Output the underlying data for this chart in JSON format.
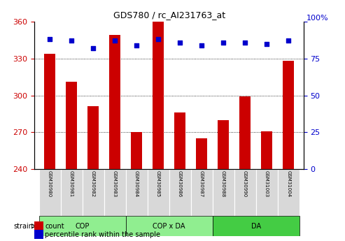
{
  "title": "GDS780 / rc_AI231763_at",
  "samples": [
    "GSM30980",
    "GSM30981",
    "GSM30982",
    "GSM30983",
    "GSM30984",
    "GSM30985",
    "GSM30986",
    "GSM30987",
    "GSM30988",
    "GSM30990",
    "GSM31003",
    "GSM31004"
  ],
  "counts": [
    334,
    311,
    291,
    349,
    270,
    360,
    286,
    265,
    280,
    299,
    271,
    328
  ],
  "percentile_ranks": [
    88,
    87,
    82,
    87,
    84,
    88,
    86,
    84,
    86,
    86,
    85,
    87
  ],
  "groups": [
    {
      "label": "COP",
      "start": 0,
      "end": 3,
      "color": "#b0e8b0"
    },
    {
      "label": "COP x DA",
      "start": 4,
      "end": 7,
      "color": "#b0e8b0"
    },
    {
      "label": "DA",
      "start": 8,
      "end": 11,
      "color": "#44cc44"
    }
  ],
  "ylim_left": [
    240,
    360
  ],
  "ylim_right": [
    0,
    100
  ],
  "yticks_left": [
    240,
    270,
    300,
    330,
    360
  ],
  "yticks_right": [
    0,
    25,
    50,
    75,
    100
  ],
  "bar_color": "#cc0000",
  "dot_color": "#0000cc",
  "label_count": "count",
  "label_percentile": "percentile rank within the sample",
  "strain_label": "strain",
  "bar_width": 0.5
}
